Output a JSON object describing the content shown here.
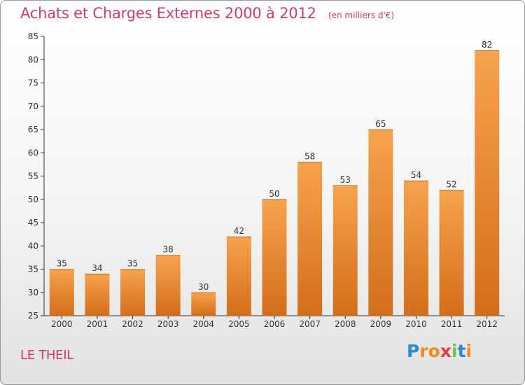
{
  "chart_data": {
    "type": "bar",
    "title": "Achats et Charges Externes 2000 à 2012",
    "subtitle": "(en milliers d'€)",
    "categories": [
      "2000",
      "2001",
      "2002",
      "2003",
      "2004",
      "2005",
      "2006",
      "2007",
      "2008",
      "2009",
      "2010",
      "2011",
      "2012"
    ],
    "values": [
      35,
      34,
      35,
      38,
      30,
      42,
      50,
      58,
      53,
      65,
      54,
      52,
      82
    ],
    "ylim": [
      25,
      85
    ],
    "yticks": [
      25,
      30,
      35,
      40,
      45,
      50,
      55,
      60,
      65,
      70,
      75,
      80,
      85
    ],
    "grid": false,
    "xlabel": "",
    "ylabel": "",
    "bar_color_top": "#f7a34e",
    "bar_color_bottom": "#d46d18"
  },
  "location": "LE THEIL",
  "logo": {
    "letters": [
      "P",
      "r",
      "o",
      "x",
      "i",
      "t",
      "i"
    ],
    "colors": [
      "#2a8ad6",
      "#f08a1e",
      "#f08a1e",
      "#e23a4a",
      "#7ac142",
      "#2a8ad6",
      "#f08a1e"
    ]
  }
}
